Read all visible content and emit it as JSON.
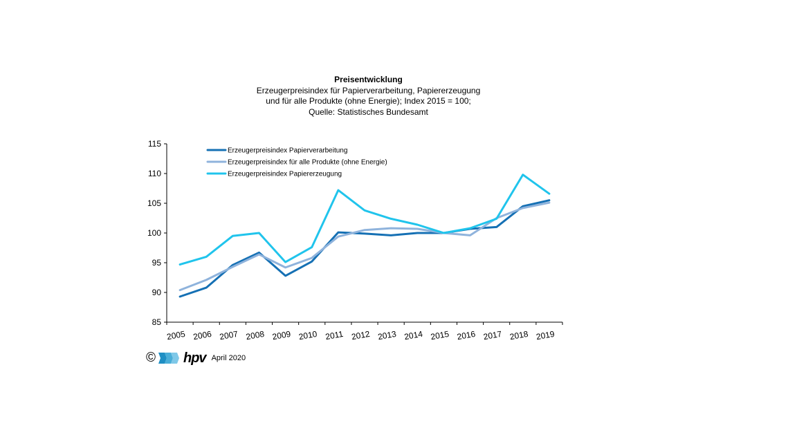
{
  "chart_data": {
    "type": "line",
    "title": "Preisentwicklung",
    "subtitle_lines": [
      "Erzeugerpreisindex  für Papierverarbeitung,  Papiererzeugung",
      "und für alle Produkte (ohne Energie); Index 2015 = 100;",
      "Quelle: Statistisches Bundesamt"
    ],
    "x": [
      "2005",
      "2006",
      "2007",
      "2008",
      "2009",
      "2010",
      "2011",
      "2012",
      "2013",
      "2014",
      "2015",
      "2016",
      "2017",
      "2018",
      "2019"
    ],
    "ylim": [
      85,
      115
    ],
    "yticks": [
      "85",
      "90",
      "95",
      "100",
      "105",
      "110",
      "115"
    ],
    "grid": false,
    "legend_position": "top-left",
    "series": [
      {
        "name": "Erzeugerpreisindex Papierverarbeitung",
        "color": "#1570b4",
        "values": [
          89.3,
          90.8,
          94.6,
          96.7,
          92.8,
          95.2,
          100.1,
          99.9,
          99.6,
          100.0,
          100.0,
          100.7,
          101.0,
          104.5,
          105.5
        ]
      },
      {
        "name": "Erzeugerpreisindex für alle Produkte (ohne Energie)",
        "color": "#8fb3dc",
        "values": [
          90.4,
          92.1,
          94.3,
          96.4,
          94.2,
          95.8,
          99.4,
          100.5,
          100.8,
          100.7,
          100.0,
          99.6,
          102.5,
          104.2,
          105.1
        ]
      },
      {
        "name": "Erzeugerpreisindex Papiererzeugung",
        "color": "#20c4ec",
        "values": [
          94.7,
          96.0,
          99.5,
          100.0,
          95.1,
          97.6,
          107.2,
          103.8,
          102.4,
          101.4,
          100.0,
          100.8,
          102.4,
          109.8,
          106.6
        ]
      }
    ]
  },
  "footer": {
    "copyright": "©",
    "logo_text": "hpv",
    "date": "April 2020",
    "logo_colors": [
      "#1f8fc4",
      "#4aaed8",
      "#7fc8e8"
    ]
  }
}
